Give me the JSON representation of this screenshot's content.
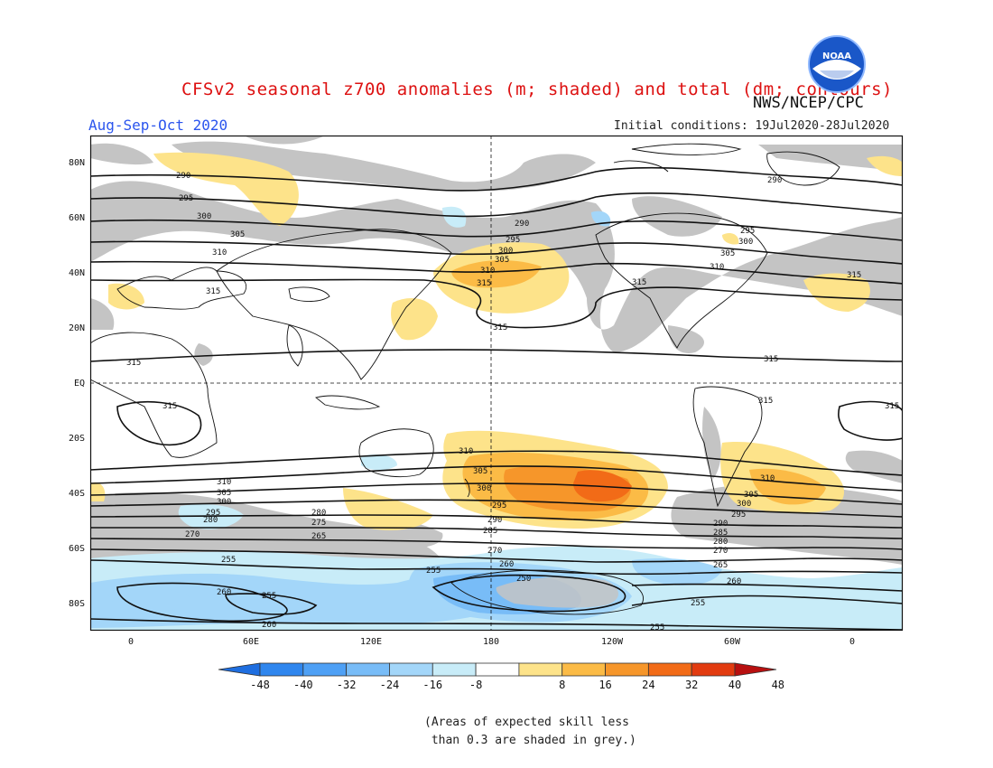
{
  "header": {
    "title": "CFSv2 seasonal z700 anomalies (m; shaded) and total (dm; contours)",
    "season": "Aug-Sep-Oct 2020",
    "agency": "NWS/NCEP/CPC",
    "initial_conditions": "Initial conditions: 19Jul2020-28Jul2020",
    "logo_text": "NOAA"
  },
  "axes": {
    "lat_labels": [
      "80N",
      "60N",
      "40N",
      "20N",
      "EQ",
      "20S",
      "40S",
      "60S",
      "80S"
    ],
    "lon_labels": [
      "0",
      "60E",
      "120E",
      "180",
      "120W",
      "60W",
      "0"
    ]
  },
  "colorbar": {
    "ticks": [
      "-48",
      "-40",
      "-32",
      "-24",
      "-16",
      "-8",
      "8",
      "16",
      "24",
      "32",
      "40",
      "48"
    ],
    "colors": [
      "#1e6ee0",
      "#2f86ee",
      "#4ea0f5",
      "#78bcf7",
      "#a3d6f9",
      "#c8ecf8",
      "#ffffff",
      "#fde38a",
      "#fbbb46",
      "#f6962a",
      "#f26b17",
      "#e23b10",
      "#b81010"
    ]
  },
  "contour_labels": [
    "315",
    "310",
    "305",
    "300",
    "295",
    "290",
    "285",
    "280",
    "275",
    "270",
    "265",
    "260",
    "255",
    "250"
  ],
  "footnote": "(Areas of expected skill less\n than 0.3 are shaded in grey.)"
}
